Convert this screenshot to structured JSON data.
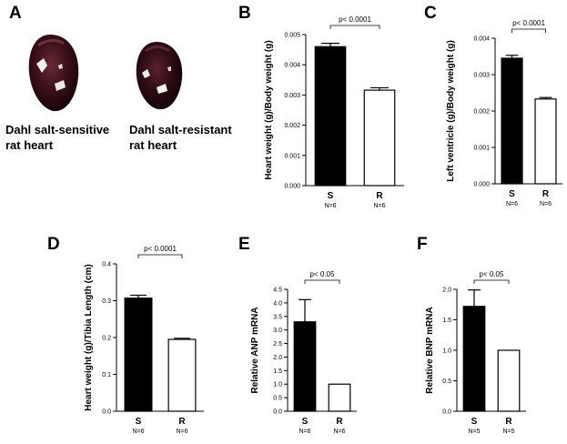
{
  "panel_a": {
    "letter": "A",
    "sensitive_caption": [
      "Dahl salt-sensitive",
      "rat heart"
    ],
    "resistant_caption": [
      "Dahl salt-resistant",
      "rat heart"
    ]
  },
  "chart_data": [
    {
      "id": "B",
      "letter": "B",
      "type": "bar",
      "categories": [
        "S",
        "R"
      ],
      "n_labels": [
        "N=6",
        "N=6"
      ],
      "values": [
        0.0046,
        0.00316
      ],
      "errors": [
        0.00011,
        8e-05
      ],
      "colors": [
        "#000000",
        "#ffffff"
      ],
      "ylabel": "Heart weight (g)/Body weight (g)",
      "ylim": [
        0,
        0.005
      ],
      "yticks": [
        "0.000",
        "0.001",
        "0.002",
        "0.003",
        "0.004",
        "0.005"
      ],
      "significance": "p< 0.0001"
    },
    {
      "id": "C",
      "letter": "C",
      "type": "bar",
      "categories": [
        "S",
        "R"
      ],
      "n_labels": [
        "N=6",
        "N=6"
      ],
      "values": [
        0.00345,
        0.00233
      ],
      "errors": [
        8e-05,
        4e-05
      ],
      "colors": [
        "#000000",
        "#ffffff"
      ],
      "ylabel": "Left ventricle (g)/Body weight (g)",
      "ylim": [
        0,
        0.004
      ],
      "yticks": [
        "0.000",
        "0.001",
        "0.002",
        "0.003",
        "0.004"
      ],
      "significance": "p< 0.0001"
    },
    {
      "id": "D",
      "letter": "D",
      "type": "bar",
      "categories": [
        "S",
        "R"
      ],
      "n_labels": [
        "N=6",
        "N=6"
      ],
      "values": [
        0.307,
        0.195
      ],
      "errors": [
        0.008,
        0.003
      ],
      "colors": [
        "#000000",
        "#ffffff"
      ],
      "ylabel": "Heart weight (g)/Tibia Length (cm)",
      "ylim": [
        0,
        0.4
      ],
      "yticks": [
        "0.0",
        "0.1",
        "0.2",
        "0.3",
        "0.4"
      ],
      "significance": "p< 0.0001"
    },
    {
      "id": "E",
      "letter": "E",
      "type": "bar",
      "categories": [
        "S",
        "R"
      ],
      "n_labels": [
        "N=6",
        "N=6"
      ],
      "values": [
        3.3,
        1.0
      ],
      "errors": [
        0.82,
        0.0
      ],
      "colors": [
        "#000000",
        "#ffffff"
      ],
      "ylabel": "Relative ANP mRNA",
      "ylim": [
        0,
        4.5
      ],
      "yticks": [
        "0.0",
        "0.5",
        "1.0",
        "1.5",
        "2.0",
        "2.5",
        "3.0",
        "3.5",
        "4.0",
        "4.5"
      ],
      "significance": "p< 0.05"
    },
    {
      "id": "F",
      "letter": "F",
      "type": "bar",
      "categories": [
        "S",
        "R"
      ],
      "n_labels": [
        "N=5",
        "N=5"
      ],
      "values": [
        1.72,
        1.0
      ],
      "errors": [
        0.27,
        0.0
      ],
      "colors": [
        "#000000",
        "#ffffff"
      ],
      "ylabel": "Relative BNP mRNA",
      "ylim": [
        0,
        2.0
      ],
      "yticks": [
        "0.0",
        "0.5",
        "1.0",
        "1.5",
        "2.0"
      ],
      "significance": "p< 0.05"
    }
  ]
}
